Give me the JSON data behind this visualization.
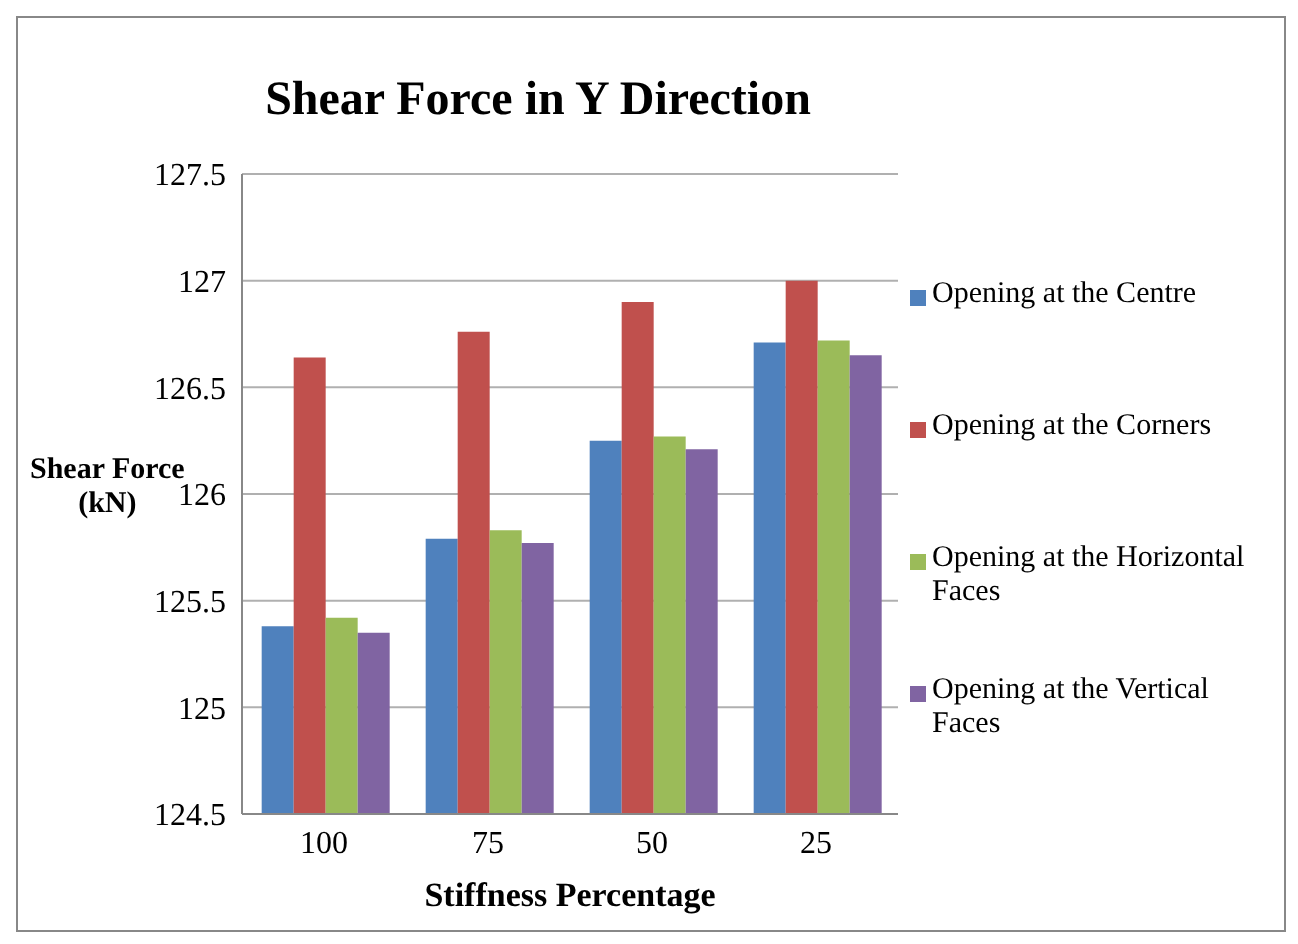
{
  "chart_data": {
    "type": "bar",
    "title": "Shear Force in Y Direction",
    "xlabel": "Stiffness Percentage",
    "ylabel": "Shear Force (kN)",
    "categories": [
      "100",
      "75",
      "50",
      "25"
    ],
    "series": [
      {
        "name": "Opening at the Centre",
        "color": "#4f81bd",
        "values": [
          125.38,
          125.79,
          126.25,
          126.71
        ]
      },
      {
        "name": "Opening at the Corners",
        "color": "#c0504d",
        "values": [
          126.64,
          126.76,
          126.9,
          127.0
        ]
      },
      {
        "name": "Opening at the Horizontal Faces",
        "color": "#9bbb59",
        "values": [
          125.42,
          125.83,
          126.27,
          126.72
        ]
      },
      {
        "name": "Opening at the Vertical Faces",
        "color": "#8064a2",
        "values": [
          125.35,
          125.77,
          126.21,
          126.65
        ]
      }
    ],
    "ylim": [
      124.5,
      127.5
    ],
    "yticks": [
      124.5,
      125,
      125.5,
      126,
      126.5,
      127,
      127.5
    ],
    "grid": "y",
    "legend": "right"
  }
}
